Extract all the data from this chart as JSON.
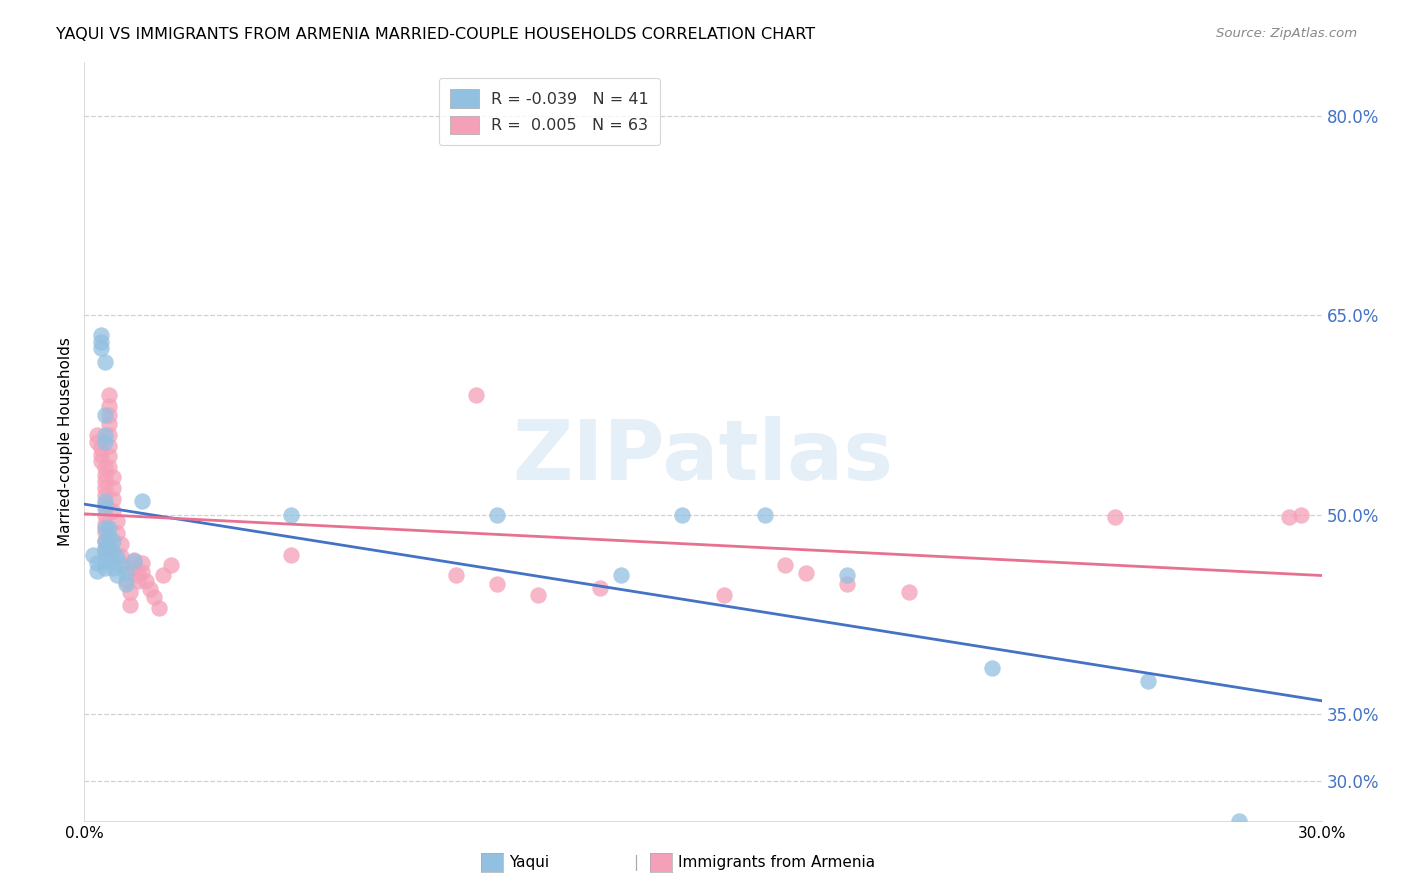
{
  "title": "YAQUI VS IMMIGRANTS FROM ARMENIA MARRIED-COUPLE HOUSEHOLDS CORRELATION CHART",
  "source": "Source: ZipAtlas.com",
  "ylabel": "Married-couple Households",
  "xlim": [
    0.0,
    0.3
  ],
  "ylim": [
    0.27,
    0.84
  ],
  "yticks": [
    0.3,
    0.35,
    0.5,
    0.65,
    0.8
  ],
  "ytick_labels": [
    "30.0%",
    "35.0%",
    "50.0%",
    "65.0%",
    "80.0%"
  ],
  "xticks": [
    0.0,
    0.05,
    0.1,
    0.15,
    0.2,
    0.25,
    0.3
  ],
  "xtick_labels": [
    "0.0%",
    "",
    "",
    "",
    "",
    "",
    "30.0%"
  ],
  "blue_color": "#92c0e0",
  "pink_color": "#f4a0b8",
  "trend_blue": "#4472c4",
  "trend_pink": "#e87090",
  "watermark": "ZIPatlas",
  "background_color": "#ffffff",
  "grid_color": "#d0d0d8",
  "yaqui_points": [
    [
      0.002,
      0.47
    ],
    [
      0.003,
      0.464
    ],
    [
      0.003,
      0.458
    ],
    [
      0.004,
      0.635
    ],
    [
      0.004,
      0.63
    ],
    [
      0.004,
      0.625
    ],
    [
      0.005,
      0.615
    ],
    [
      0.005,
      0.575
    ],
    [
      0.005,
      0.56
    ],
    [
      0.005,
      0.555
    ],
    [
      0.005,
      0.51
    ],
    [
      0.005,
      0.505
    ],
    [
      0.005,
      0.49
    ],
    [
      0.005,
      0.48
    ],
    [
      0.005,
      0.475
    ],
    [
      0.005,
      0.472
    ],
    [
      0.005,
      0.465
    ],
    [
      0.005,
      0.46
    ],
    [
      0.006,
      0.49
    ],
    [
      0.006,
      0.483
    ],
    [
      0.006,
      0.475
    ],
    [
      0.006,
      0.465
    ],
    [
      0.007,
      0.48
    ],
    [
      0.007,
      0.472
    ],
    [
      0.007,
      0.46
    ],
    [
      0.008,
      0.468
    ],
    [
      0.008,
      0.455
    ],
    [
      0.009,
      0.462
    ],
    [
      0.01,
      0.456
    ],
    [
      0.01,
      0.448
    ],
    [
      0.012,
      0.465
    ],
    [
      0.014,
      0.51
    ],
    [
      0.05,
      0.5
    ],
    [
      0.1,
      0.5
    ],
    [
      0.13,
      0.455
    ],
    [
      0.145,
      0.5
    ],
    [
      0.165,
      0.5
    ],
    [
      0.185,
      0.455
    ],
    [
      0.22,
      0.385
    ],
    [
      0.258,
      0.375
    ],
    [
      0.28,
      0.27
    ]
  ],
  "armenia_points": [
    [
      0.003,
      0.56
    ],
    [
      0.003,
      0.555
    ],
    [
      0.004,
      0.55
    ],
    [
      0.004,
      0.545
    ],
    [
      0.004,
      0.54
    ],
    [
      0.005,
      0.535
    ],
    [
      0.005,
      0.53
    ],
    [
      0.005,
      0.525
    ],
    [
      0.005,
      0.52
    ],
    [
      0.005,
      0.515
    ],
    [
      0.005,
      0.508
    ],
    [
      0.005,
      0.5
    ],
    [
      0.005,
      0.493
    ],
    [
      0.005,
      0.487
    ],
    [
      0.005,
      0.48
    ],
    [
      0.005,
      0.474
    ],
    [
      0.006,
      0.59
    ],
    [
      0.006,
      0.582
    ],
    [
      0.006,
      0.575
    ],
    [
      0.006,
      0.568
    ],
    [
      0.006,
      0.56
    ],
    [
      0.006,
      0.552
    ],
    [
      0.006,
      0.544
    ],
    [
      0.006,
      0.536
    ],
    [
      0.007,
      0.528
    ],
    [
      0.007,
      0.52
    ],
    [
      0.007,
      0.512
    ],
    [
      0.007,
      0.503
    ],
    [
      0.008,
      0.495
    ],
    [
      0.008,
      0.486
    ],
    [
      0.009,
      0.478
    ],
    [
      0.009,
      0.469
    ],
    [
      0.01,
      0.46
    ],
    [
      0.01,
      0.45
    ],
    [
      0.011,
      0.442
    ],
    [
      0.011,
      0.432
    ],
    [
      0.012,
      0.466
    ],
    [
      0.012,
      0.46
    ],
    [
      0.013,
      0.455
    ],
    [
      0.013,
      0.45
    ],
    [
      0.014,
      0.464
    ],
    [
      0.014,
      0.457
    ],
    [
      0.015,
      0.45
    ],
    [
      0.016,
      0.444
    ],
    [
      0.017,
      0.438
    ],
    [
      0.018,
      0.43
    ],
    [
      0.019,
      0.455
    ],
    [
      0.021,
      0.462
    ],
    [
      0.05,
      0.47
    ],
    [
      0.09,
      0.455
    ],
    [
      0.095,
      0.59
    ],
    [
      0.1,
      0.448
    ],
    [
      0.11,
      0.44
    ],
    [
      0.125,
      0.445
    ],
    [
      0.155,
      0.44
    ],
    [
      0.17,
      0.462
    ],
    [
      0.175,
      0.456
    ],
    [
      0.185,
      0.448
    ],
    [
      0.2,
      0.442
    ],
    [
      0.25,
      0.498
    ],
    [
      0.292,
      0.498
    ],
    [
      0.295,
      0.5
    ]
  ]
}
